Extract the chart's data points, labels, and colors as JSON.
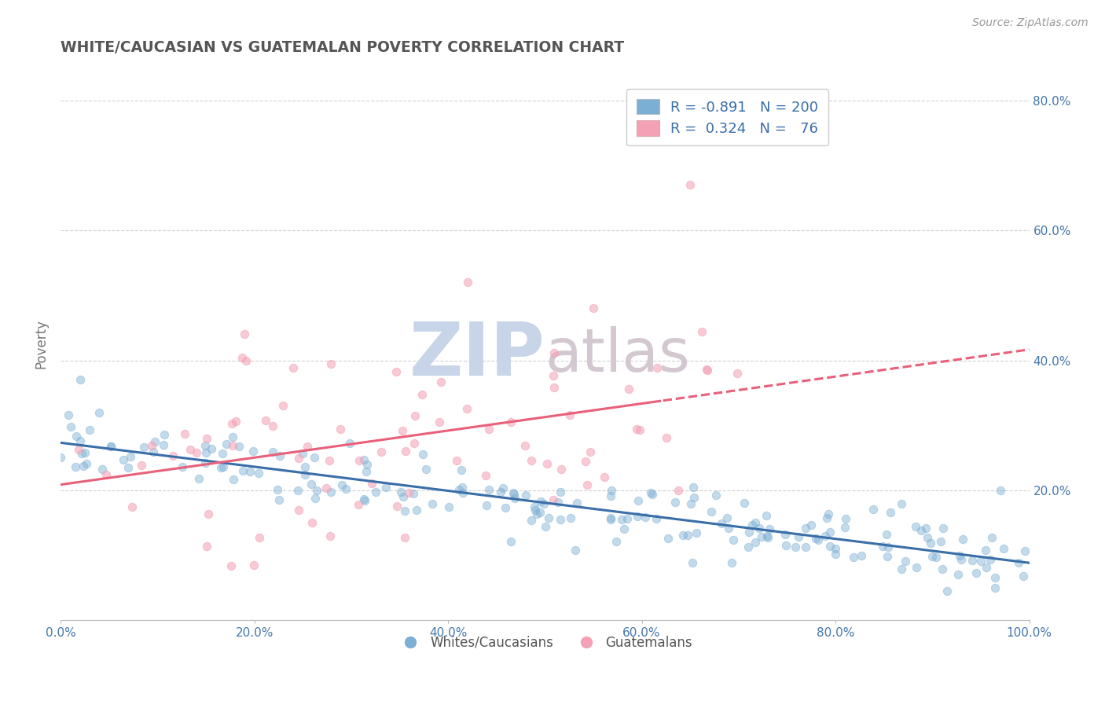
{
  "title": "WHITE/CAUCASIAN VS GUATEMALAN POVERTY CORRELATION CHART",
  "source": "Source: ZipAtlas.com",
  "ylabel": "Poverty",
  "xlabel": "",
  "watermark_zip": "ZIP",
  "watermark_atlas": "atlas",
  "legend_blue_r": "-0.891",
  "legend_blue_n": "200",
  "legend_pink_r": "0.324",
  "legend_pink_n": "76",
  "blue_color": "#7BAFD4",
  "pink_color": "#F4A0B5",
  "blue_line_color": "#3A6EA8",
  "pink_line_color": "#E8607A",
  "title_color": "#555555",
  "legend_text_color": "#3A6EA8",
  "axis_label_color": "#4477AA",
  "bg_color": "#FFFFFF",
  "grid_color": "#CCCCCC",
  "xlim": [
    0.0,
    1.0
  ],
  "ylim": [
    0.0,
    0.85
  ],
  "xticks": [
    0.0,
    0.2,
    0.4,
    0.6,
    0.8,
    1.0
  ],
  "xtick_labels": [
    "0.0%",
    "20.0%",
    "40.0%",
    "60.0%",
    "80.0%",
    "100.0%"
  ],
  "ytick_positions": [
    0.0,
    0.2,
    0.4,
    0.6,
    0.8
  ],
  "ytick_labels": [
    "",
    "20.0%",
    "40.0%",
    "60.0%",
    "80.0%"
  ],
  "legend_label_blue": "Whites/Caucasians",
  "legend_label_pink": "Guatemalans"
}
